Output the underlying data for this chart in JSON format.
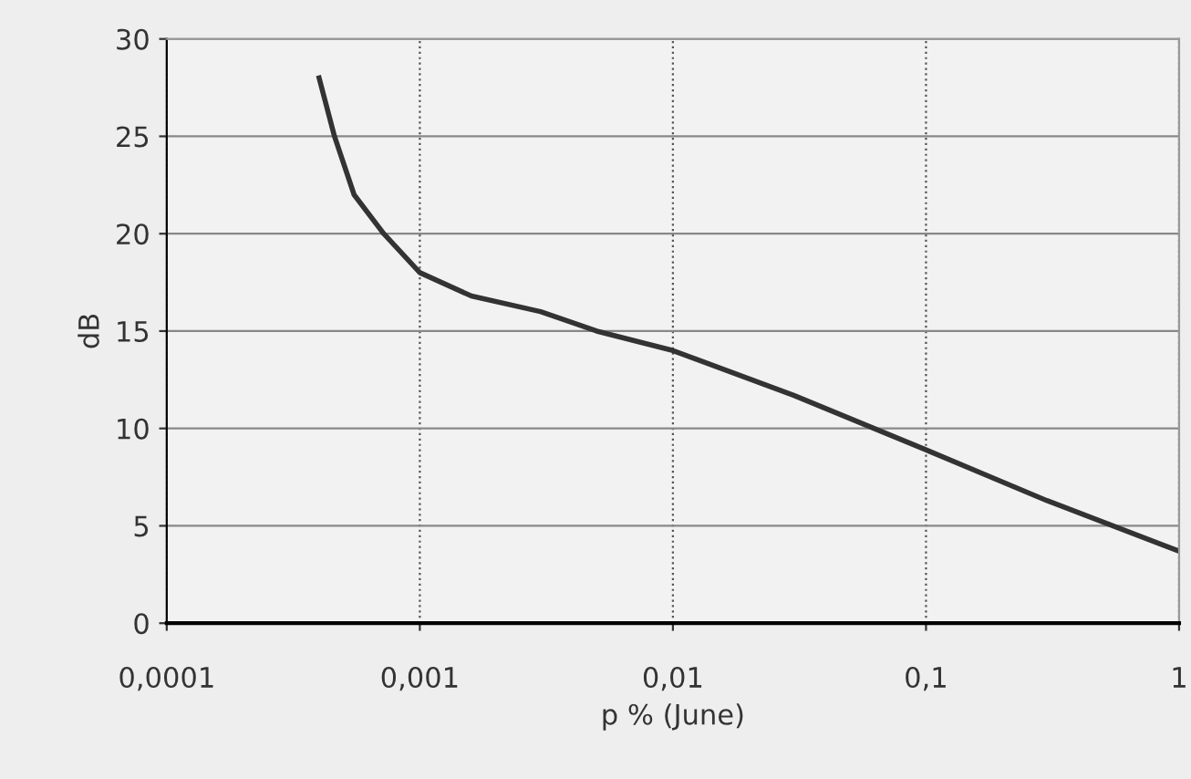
{
  "chart_data": {
    "type": "line",
    "xlabel": "p % (June)",
    "ylabel": "dB",
    "log": "x",
    "xlim": [
      0.0001,
      1
    ],
    "ylim": [
      0,
      30
    ],
    "xticks": [
      {
        "value": 0.0001,
        "label": "0,0001"
      },
      {
        "value": 0.001,
        "label": "0,001"
      },
      {
        "value": 0.01,
        "label": "0,01"
      },
      {
        "value": 0.1,
        "label": "0,1"
      },
      1
    ],
    "yticks": [
      0,
      5,
      10,
      15,
      20,
      25,
      30
    ],
    "grid": true,
    "legend": false,
    "marker": "none",
    "line_style": "solid",
    "series": [
      {
        "color": "#333333",
        "x": [
          0.0004,
          0.00046,
          0.00055,
          0.00072,
          0.001,
          0.0016,
          0.003,
          0.005,
          0.01,
          0.03,
          0.1,
          0.3,
          1
        ],
        "values": [
          28,
          25,
          22,
          20,
          18,
          16.8,
          16,
          15,
          14,
          11.7,
          8.9,
          6.3,
          3.7
        ]
      }
    ]
  }
}
